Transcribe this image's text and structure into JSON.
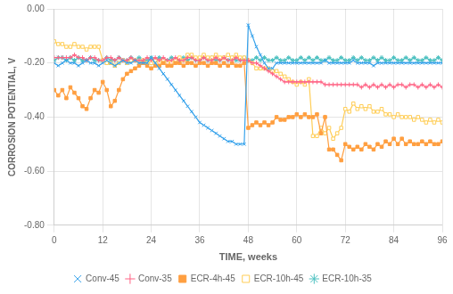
{
  "chart_data": {
    "type": "line",
    "x_label": "TIME, weeks",
    "y_label": "CORROSION POTENTIAL, V",
    "xlim": [
      0,
      96
    ],
    "ylim": [
      -0.8,
      0.0
    ],
    "xticks": [
      0,
      12,
      24,
      36,
      48,
      60,
      72,
      84,
      96
    ],
    "yticks": [
      {
        "value": 0.0,
        "label": "0.00"
      },
      {
        "value": -0.2,
        "label": "-0.20"
      },
      {
        "value": -0.4,
        "label": "-0.40"
      },
      {
        "value": -0.6,
        "label": "-0.60"
      },
      {
        "value": -0.8,
        "label": "-0.80"
      }
    ],
    "grid": true,
    "legend": "bottom",
    "x": [
      0,
      1,
      2,
      3,
      4,
      5,
      6,
      7,
      8,
      9,
      10,
      11,
      12,
      13,
      14,
      15,
      16,
      17,
      18,
      19,
      20,
      21,
      22,
      23,
      24,
      25,
      26,
      27,
      28,
      29,
      30,
      31,
      32,
      33,
      34,
      35,
      36,
      37,
      38,
      39,
      40,
      41,
      42,
      43,
      44,
      45,
      46,
      47,
      48,
      49,
      50,
      51,
      52,
      53,
      54,
      55,
      56,
      57,
      58,
      59,
      60,
      61,
      62,
      63,
      64,
      65,
      66,
      67,
      68,
      69,
      70,
      71,
      72,
      73,
      74,
      75,
      76,
      77,
      78,
      79,
      80,
      81,
      82,
      83,
      84,
      85,
      86,
      87,
      88,
      89,
      90,
      91,
      92,
      93,
      94,
      95,
      96
    ],
    "series": [
      {
        "name": "Conv-45",
        "marker": "x",
        "values": [
          -0.2,
          -0.21,
          -0.2,
          -0.19,
          -0.2,
          -0.2,
          -0.21,
          -0.2,
          -0.19,
          -0.2,
          -0.2,
          -0.21,
          -0.2,
          -0.19,
          -0.2,
          -0.21,
          -0.2,
          -0.19,
          -0.2,
          -0.2,
          -0.19,
          -0.2,
          -0.2,
          -0.2,
          -0.18,
          -0.2,
          -0.22,
          -0.24,
          -0.26,
          -0.28,
          -0.3,
          -0.32,
          -0.34,
          -0.36,
          -0.38,
          -0.4,
          -0.42,
          -0.43,
          -0.44,
          -0.45,
          -0.46,
          -0.47,
          -0.48,
          -0.49,
          -0.49,
          -0.5,
          -0.5,
          -0.5,
          -0.06,
          -0.1,
          -0.14,
          -0.17,
          -0.2,
          -0.22,
          -0.22,
          -0.2,
          -0.2,
          -0.2,
          -0.2,
          -0.2,
          -0.2,
          -0.2,
          -0.2,
          -0.2,
          -0.2,
          -0.2,
          -0.2,
          -0.19,
          -0.2,
          -0.2,
          -0.2,
          -0.2,
          -0.2,
          -0.2,
          -0.19,
          -0.2,
          -0.2,
          -0.2,
          -0.2,
          -0.21,
          -0.2,
          -0.2,
          -0.2,
          -0.2,
          -0.2,
          -0.2,
          -0.2,
          -0.2,
          -0.2,
          -0.2,
          -0.2,
          -0.2,
          -0.2,
          -0.2,
          -0.2,
          -0.2,
          -0.2
        ]
      },
      {
        "name": "Conv-35",
        "marker": "plus",
        "values": [
          -0.18,
          -0.18,
          -0.18,
          -0.18,
          -0.18,
          -0.17,
          -0.18,
          -0.18,
          -0.19,
          -0.18,
          -0.18,
          -0.19,
          -0.19,
          -0.18,
          -0.18,
          -0.19,
          -0.18,
          -0.19,
          -0.19,
          -0.18,
          -0.19,
          -0.19,
          -0.19,
          -0.18,
          -0.19,
          -0.18,
          -0.19,
          -0.18,
          -0.19,
          -0.19,
          -0.18,
          -0.19,
          -0.19,
          -0.18,
          -0.18,
          -0.19,
          -0.19,
          -0.18,
          -0.19,
          -0.19,
          -0.18,
          -0.19,
          -0.18,
          -0.19,
          -0.19,
          -0.18,
          -0.19,
          -0.19,
          -0.19,
          -0.2,
          -0.2,
          -0.21,
          -0.22,
          -0.23,
          -0.24,
          -0.25,
          -0.26,
          -0.27,
          -0.27,
          -0.27,
          -0.27,
          -0.27,
          -0.27,
          -0.27,
          -0.27,
          -0.27,
          -0.27,
          -0.28,
          -0.28,
          -0.28,
          -0.28,
          -0.28,
          -0.28,
          -0.28,
          -0.28,
          -0.28,
          -0.29,
          -0.28,
          -0.29,
          -0.28,
          -0.29,
          -0.28,
          -0.29,
          -0.28,
          -0.29,
          -0.28,
          -0.28,
          -0.29,
          -0.28,
          -0.28,
          -0.29,
          -0.28,
          -0.29,
          -0.28,
          -0.29,
          -0.28,
          -0.29
        ]
      },
      {
        "name": "ECR-4h-45",
        "marker": "square",
        "values": [
          -0.3,
          -0.32,
          -0.3,
          -0.33,
          -0.29,
          -0.31,
          -0.33,
          -0.36,
          -0.37,
          -0.33,
          -0.3,
          -0.31,
          -0.27,
          -0.3,
          -0.36,
          -0.34,
          -0.3,
          -0.26,
          -0.24,
          -0.23,
          -0.22,
          -0.21,
          -0.2,
          -0.21,
          -0.22,
          -0.21,
          -0.21,
          -0.2,
          -0.21,
          -0.21,
          -0.2,
          -0.2,
          -0.21,
          -0.2,
          -0.2,
          -0.21,
          -0.2,
          -0.2,
          -0.21,
          -0.2,
          -0.2,
          -0.21,
          -0.2,
          -0.21,
          -0.2,
          -0.21,
          -0.21,
          -0.2,
          -0.44,
          -0.43,
          -0.42,
          -0.43,
          -0.42,
          -0.43,
          -0.42,
          -0.4,
          -0.41,
          -0.41,
          -0.4,
          -0.4,
          -0.39,
          -0.4,
          -0.39,
          -0.4,
          -0.4,
          -0.39,
          -0.46,
          -0.4,
          -0.52,
          -0.52,
          -0.54,
          -0.56,
          -0.5,
          -0.51,
          -0.52,
          -0.51,
          -0.52,
          -0.5,
          -0.51,
          -0.52,
          -0.5,
          -0.51,
          -0.49,
          -0.5,
          -0.48,
          -0.5,
          -0.48,
          -0.5,
          -0.49,
          -0.5,
          -0.5,
          -0.49,
          -0.5,
          -0.49,
          -0.5,
          -0.5,
          -0.49
        ]
      },
      {
        "name": "ECR-10h-45",
        "marker": "square_open",
        "values": [
          -0.12,
          -0.13,
          -0.13,
          -0.14,
          -0.14,
          -0.13,
          -0.14,
          -0.14,
          -0.15,
          -0.14,
          -0.14,
          -0.14,
          -0.19,
          -0.2,
          -0.2,
          -0.21,
          -0.2,
          -0.19,
          -0.2,
          -0.19,
          -0.19,
          -0.2,
          -0.19,
          -0.2,
          -0.2,
          -0.19,
          -0.2,
          -0.19,
          -0.2,
          -0.2,
          -0.19,
          -0.18,
          -0.19,
          -0.17,
          -0.17,
          -0.18,
          -0.18,
          -0.17,
          -0.18,
          -0.18,
          -0.17,
          -0.18,
          -0.18,
          -0.17,
          -0.18,
          -0.17,
          -0.18,
          -0.18,
          -0.19,
          -0.2,
          -0.22,
          -0.22,
          -0.22,
          -0.22,
          -0.23,
          -0.23,
          -0.24,
          -0.25,
          -0.26,
          -0.27,
          -0.28,
          -0.27,
          -0.28,
          -0.26,
          -0.47,
          -0.47,
          -0.44,
          -0.46,
          -0.44,
          -0.48,
          -0.46,
          -0.44,
          -0.37,
          -0.38,
          -0.35,
          -0.37,
          -0.36,
          -0.37,
          -0.36,
          -0.38,
          -0.38,
          -0.37,
          -0.39,
          -0.39,
          -0.4,
          -0.39,
          -0.4,
          -0.4,
          -0.4,
          -0.41,
          -0.4,
          -0.41,
          -0.42,
          -0.41,
          -0.42,
          -0.41,
          -0.42
        ]
      },
      {
        "name": "ECR-10h-35",
        "marker": "star",
        "values": [
          -0.19,
          -0.18,
          -0.18,
          -0.19,
          -0.18,
          -0.19,
          -0.18,
          -0.19,
          -0.19,
          -0.18,
          -0.19,
          -0.19,
          -0.19,
          -0.18,
          -0.19,
          -0.19,
          -0.18,
          -0.19,
          -0.19,
          -0.18,
          -0.19,
          -0.18,
          -0.19,
          -0.19,
          -0.18,
          -0.19,
          -0.18,
          -0.19,
          -0.19,
          -0.18,
          -0.19,
          -0.19,
          -0.18,
          -0.19,
          -0.18,
          -0.19,
          -0.19,
          -0.18,
          -0.19,
          -0.18,
          -0.19,
          -0.19,
          -0.18,
          -0.19,
          -0.18,
          -0.19,
          -0.19,
          -0.18,
          -0.19,
          -0.19,
          -0.18,
          -0.19,
          -0.18,
          -0.19,
          -0.19,
          -0.18,
          -0.19,
          -0.19,
          -0.18,
          -0.19,
          -0.19,
          -0.18,
          -0.19,
          -0.18,
          -0.19,
          -0.18,
          -0.19,
          -0.19,
          -0.18,
          -0.19,
          -0.19,
          -0.18,
          -0.19,
          -0.19,
          -0.18,
          -0.19,
          -0.18,
          -0.19,
          -0.19,
          -0.18,
          -0.19,
          -0.18,
          -0.19,
          -0.19,
          -0.18,
          -0.19,
          -0.19,
          -0.18,
          -0.19,
          -0.18,
          -0.19,
          -0.19,
          -0.18,
          -0.19,
          -0.19,
          -0.18,
          -0.19
        ]
      }
    ]
  }
}
